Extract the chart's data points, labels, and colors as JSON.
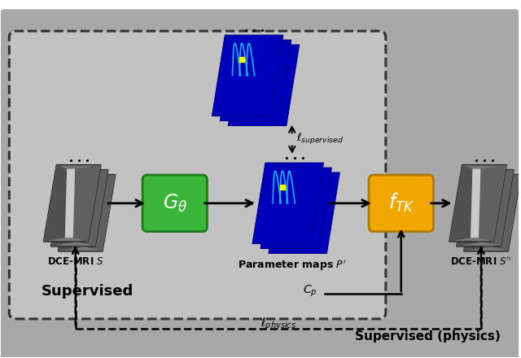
{
  "bg_color": "#a8a8a8",
  "inner_supervised_color": "#c0c0c0",
  "label_supervised": "Supervised",
  "label_supervised_physics": "Supervised (physics)",
  "label_dce_s": "DCE-MRI $S$",
  "label_param": "Parameter maps $P'$",
  "label_dce_s2": "DCE-MRI $S''$",
  "label_l_supervised": "$\\ell_{supervised}$",
  "label_l_physics": "$\\ell_{physics}$",
  "label_cp": "$C_p$",
  "G_theta_color": "#3ab53a",
  "G_theta_edge": "#1e7a1e",
  "f_TK_color": "#f0a800",
  "f_TK_edge": "#b07800",
  "mri_color_dark": "#505050",
  "mri_color_mid": "#707070",
  "mri_color_light": "#909090"
}
